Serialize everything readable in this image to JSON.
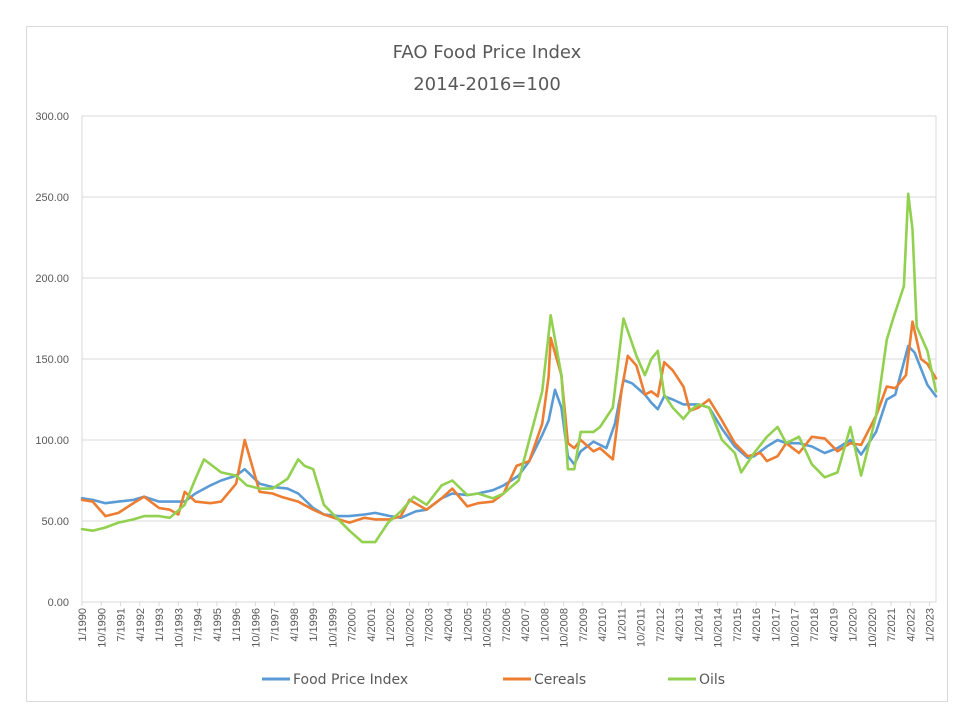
{
  "chart_data": {
    "type": "line",
    "title": "FAO Food Price Index",
    "subtitle": "2014-2016=100",
    "ylim": [
      0,
      300
    ],
    "yticks": [
      "0.00",
      "50.00",
      "100.00",
      "150.00",
      "200.00",
      "250.00",
      "300.00"
    ],
    "x_start": "1990-01",
    "x_end": "2023-04",
    "xtick_labels": [
      "1/1990",
      "10/1990",
      "7/1991",
      "4/1992",
      "1/1993",
      "10/1993",
      "7/1994",
      "4/1995",
      "1/1996",
      "10/1996",
      "7/1997",
      "4/1998",
      "1/1999",
      "10/1999",
      "7/2000",
      "4/2001",
      "1/2002",
      "10/2002",
      "7/2003",
      "4/2004",
      "1/2005",
      "10/2005",
      "7/2006",
      "4/2007",
      "1/2008",
      "10/2008",
      "7/2009",
      "4/2010",
      "1/2011",
      "10/2011",
      "7/2012",
      "4/2013",
      "1/2014",
      "10/2014",
      "7/2015",
      "4/2016",
      "1/2017",
      "10/2017",
      "7/2018",
      "4/2019",
      "1/2020",
      "10/2020",
      "7/2021",
      "4/2022",
      "1/2023"
    ],
    "grid": true,
    "legend_position": "bottom",
    "series": [
      {
        "name": "Food Price Index",
        "color": "#5b9bd5",
        "points": [
          [
            "1990-01",
            64
          ],
          [
            "1990-06",
            63
          ],
          [
            "1990-12",
            61
          ],
          [
            "1991-06",
            62
          ],
          [
            "1992-01",
            63
          ],
          [
            "1992-06",
            65
          ],
          [
            "1993-01",
            62
          ],
          [
            "1993-06",
            62
          ],
          [
            "1994-01",
            62
          ],
          [
            "1994-06",
            67
          ],
          [
            "1995-01",
            72
          ],
          [
            "1995-06",
            75
          ],
          [
            "1996-01",
            78
          ],
          [
            "1996-05",
            82
          ],
          [
            "1996-12",
            73
          ],
          [
            "1997-06",
            71
          ],
          [
            "1998-01",
            70
          ],
          [
            "1998-06",
            67
          ],
          [
            "1999-01",
            58
          ],
          [
            "1999-06",
            54
          ],
          [
            "2000-01",
            53
          ],
          [
            "2000-06",
            53
          ],
          [
            "2001-01",
            54
          ],
          [
            "2001-06",
            55
          ],
          [
            "2002-01",
            53
          ],
          [
            "2002-06",
            52
          ],
          [
            "2003-01",
            56
          ],
          [
            "2003-06",
            57
          ],
          [
            "2004-01",
            64
          ],
          [
            "2004-06",
            67
          ],
          [
            "2005-01",
            66
          ],
          [
            "2005-06",
            67
          ],
          [
            "2006-01",
            69
          ],
          [
            "2006-06",
            72
          ],
          [
            "2007-01",
            78
          ],
          [
            "2007-06",
            87
          ],
          [
            "2007-12",
            103
          ],
          [
            "2008-03",
            112
          ],
          [
            "2008-06",
            131
          ],
          [
            "2008-09",
            120
          ],
          [
            "2008-12",
            90
          ],
          [
            "2009-03",
            85
          ],
          [
            "2009-06",
            93
          ],
          [
            "2009-12",
            99
          ],
          [
            "2010-03",
            97
          ],
          [
            "2010-06",
            95
          ],
          [
            "2010-10",
            110
          ],
          [
            "2011-02",
            137
          ],
          [
            "2011-06",
            135
          ],
          [
            "2011-12",
            128
          ],
          [
            "2012-03",
            123
          ],
          [
            "2012-06",
            119
          ],
          [
            "2012-09",
            127
          ],
          [
            "2013-01",
            125
          ],
          [
            "2013-06",
            122
          ],
          [
            "2014-01",
            122
          ],
          [
            "2014-06",
            120
          ],
          [
            "2014-12",
            107
          ],
          [
            "2015-06",
            96
          ],
          [
            "2015-12",
            89
          ],
          [
            "2016-03",
            90
          ],
          [
            "2016-09",
            96
          ],
          [
            "2017-02",
            100
          ],
          [
            "2017-06",
            98
          ],
          [
            "2017-12",
            98
          ],
          [
            "2018-06",
            96
          ],
          [
            "2018-12",
            92
          ],
          [
            "2019-06",
            95
          ],
          [
            "2019-12",
            100
          ],
          [
            "2020-05",
            91
          ],
          [
            "2020-12",
            105
          ],
          [
            "2021-05",
            125
          ],
          [
            "2021-09",
            128
          ],
          [
            "2022-03",
            158
          ],
          [
            "2022-06",
            154
          ],
          [
            "2022-12",
            134
          ],
          [
            "2023-04",
            127
          ]
        ]
      },
      {
        "name": "Cereals",
        "color": "#ed7d31",
        "points": [
          [
            "1990-01",
            63
          ],
          [
            "1990-06",
            62
          ],
          [
            "1990-12",
            53
          ],
          [
            "1991-06",
            55
          ],
          [
            "1992-01",
            61
          ],
          [
            "1992-06",
            65
          ],
          [
            "1993-01",
            58
          ],
          [
            "1993-06",
            57
          ],
          [
            "1993-10",
            54
          ],
          [
            "1994-01",
            68
          ],
          [
            "1994-06",
            62
          ],
          [
            "1995-01",
            61
          ],
          [
            "1995-06",
            62
          ],
          [
            "1996-01",
            73
          ],
          [
            "1996-05",
            100
          ],
          [
            "1996-12",
            68
          ],
          [
            "1997-06",
            67
          ],
          [
            "1997-10",
            65
          ],
          [
            "1998-06",
            62
          ],
          [
            "1999-01",
            57
          ],
          [
            "1999-06",
            54
          ],
          [
            "2000-01",
            51
          ],
          [
            "2000-06",
            49
          ],
          [
            "2001-01",
            52
          ],
          [
            "2001-06",
            51
          ],
          [
            "2002-01",
            51
          ],
          [
            "2002-06",
            53
          ],
          [
            "2002-10",
            63
          ],
          [
            "2003-06",
            57
          ],
          [
            "2004-01",
            64
          ],
          [
            "2004-06",
            70
          ],
          [
            "2005-01",
            59
          ],
          [
            "2005-06",
            61
          ],
          [
            "2006-01",
            62
          ],
          [
            "2006-06",
            67
          ],
          [
            "2006-12",
            84
          ],
          [
            "2007-06",
            87
          ],
          [
            "2007-12",
            110
          ],
          [
            "2008-03",
            139
          ],
          [
            "2008-04",
            163
          ],
          [
            "2008-09",
            140
          ],
          [
            "2008-12",
            98
          ],
          [
            "2009-03",
            95
          ],
          [
            "2009-06",
            100
          ],
          [
            "2009-12",
            93
          ],
          [
            "2010-03",
            95
          ],
          [
            "2010-09",
            88
          ],
          [
            "2011-01",
            130
          ],
          [
            "2011-04",
            152
          ],
          [
            "2011-08",
            146
          ],
          [
            "2011-12",
            128
          ],
          [
            "2012-03",
            130
          ],
          [
            "2012-06",
            127
          ],
          [
            "2012-09",
            148
          ],
          [
            "2013-01",
            143
          ],
          [
            "2013-06",
            133
          ],
          [
            "2013-09",
            118
          ],
          [
            "2014-01",
            120
          ],
          [
            "2014-06",
            125
          ],
          [
            "2014-12",
            112
          ],
          [
            "2015-06",
            98
          ],
          [
            "2015-12",
            90
          ],
          [
            "2016-06",
            92
          ],
          [
            "2016-09",
            87
          ],
          [
            "2017-02",
            90
          ],
          [
            "2017-06",
            98
          ],
          [
            "2017-12",
            92
          ],
          [
            "2018-06",
            102
          ],
          [
            "2018-12",
            101
          ],
          [
            "2019-06",
            93
          ],
          [
            "2019-12",
            98
          ],
          [
            "2020-05",
            97
          ],
          [
            "2020-12",
            115
          ],
          [
            "2021-05",
            133
          ],
          [
            "2021-09",
            132
          ],
          [
            "2022-02",
            140
          ],
          [
            "2022-05",
            173
          ],
          [
            "2022-09",
            150
          ],
          [
            "2022-12",
            147
          ],
          [
            "2023-04",
            138
          ]
        ]
      },
      {
        "name": "Oils",
        "color": "#92d050",
        "points": [
          [
            "1990-01",
            45
          ],
          [
            "1990-06",
            44
          ],
          [
            "1990-12",
            46
          ],
          [
            "1991-06",
            49
          ],
          [
            "1992-01",
            51
          ],
          [
            "1992-06",
            53
          ],
          [
            "1993-01",
            53
          ],
          [
            "1993-06",
            52
          ],
          [
            "1994-01",
            60
          ],
          [
            "1994-06",
            76
          ],
          [
            "1994-10",
            88
          ],
          [
            "1995-06",
            80
          ],
          [
            "1996-01",
            78
          ],
          [
            "1996-06",
            72
          ],
          [
            "1996-12",
            70
          ],
          [
            "1997-06",
            70
          ],
          [
            "1998-01",
            76
          ],
          [
            "1998-06",
            88
          ],
          [
            "1998-09",
            84
          ],
          [
            "1999-01",
            82
          ],
          [
            "1999-06",
            60
          ],
          [
            "1999-12",
            52
          ],
          [
            "2000-06",
            44
          ],
          [
            "2000-12",
            37
          ],
          [
            "2001-06",
            37
          ],
          [
            "2001-12",
            49
          ],
          [
            "2002-06",
            56
          ],
          [
            "2002-12",
            65
          ],
          [
            "2003-06",
            60
          ],
          [
            "2004-01",
            72
          ],
          [
            "2004-06",
            75
          ],
          [
            "2005-01",
            66
          ],
          [
            "2005-06",
            67
          ],
          [
            "2006-01",
            64
          ],
          [
            "2006-06",
            67
          ],
          [
            "2007-01",
            75
          ],
          [
            "2007-06",
            100
          ],
          [
            "2007-12",
            130
          ],
          [
            "2008-03",
            165
          ],
          [
            "2008-04",
            177
          ],
          [
            "2008-09",
            140
          ],
          [
            "2008-12",
            82
          ],
          [
            "2009-03",
            82
          ],
          [
            "2009-06",
            105
          ],
          [
            "2009-12",
            105
          ],
          [
            "2010-03",
            108
          ],
          [
            "2010-09",
            120
          ],
          [
            "2011-01",
            165
          ],
          [
            "2011-02",
            175
          ],
          [
            "2011-08",
            152
          ],
          [
            "2011-12",
            140
          ],
          [
            "2012-03",
            150
          ],
          [
            "2012-06",
            155
          ],
          [
            "2012-09",
            128
          ],
          [
            "2013-01",
            120
          ],
          [
            "2013-06",
            113
          ],
          [
            "2013-09",
            118
          ],
          [
            "2014-01",
            122
          ],
          [
            "2014-06",
            120
          ],
          [
            "2014-12",
            100
          ],
          [
            "2015-06",
            92
          ],
          [
            "2015-09",
            80
          ],
          [
            "2016-03",
            92
          ],
          [
            "2016-09",
            102
          ],
          [
            "2017-02",
            108
          ],
          [
            "2017-06",
            98
          ],
          [
            "2017-12",
            102
          ],
          [
            "2018-06",
            85
          ],
          [
            "2018-12",
            77
          ],
          [
            "2019-06",
            80
          ],
          [
            "2019-12",
            108
          ],
          [
            "2020-05",
            78
          ],
          [
            "2020-12",
            115
          ],
          [
            "2021-05",
            162
          ],
          [
            "2021-08",
            175
          ],
          [
            "2022-01",
            195
          ],
          [
            "2022-03",
            252
          ],
          [
            "2022-05",
            230
          ],
          [
            "2022-07",
            170
          ],
          [
            "2022-12",
            155
          ],
          [
            "2023-04",
            130
          ]
        ]
      }
    ]
  }
}
